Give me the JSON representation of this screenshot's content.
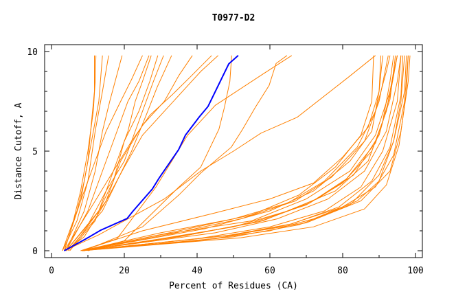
{
  "chart_data": {
    "type": "line",
    "title": "T0977-D2",
    "xlabel": "Percent of Residues (CA)",
    "ylabel": "Distance Cutoff, A",
    "xlim": [
      0,
      100
    ],
    "ylim": [
      0,
      10
    ],
    "xticks": [
      "0",
      "20",
      "40",
      "60",
      "80",
      "100"
    ],
    "xtick_values": [
      0,
      20,
      40,
      60,
      80,
      100
    ],
    "yticks": [
      "0",
      "5",
      "10"
    ],
    "ytick_values": [
      0,
      5,
      10
    ],
    "colors": {
      "highlight": "#0000ff",
      "others": "#ff8000",
      "axis": "#000000"
    },
    "highlight_series": {
      "name": "highlighted model",
      "points": [
        [
          3.5,
          0
        ],
        [
          9.4,
          0.59
        ],
        [
          13.5,
          1.03
        ],
        [
          20.8,
          1.62
        ],
        [
          22.3,
          1.97
        ],
        [
          27.7,
          3.1
        ],
        [
          29.6,
          3.66
        ],
        [
          34.9,
          5.07
        ],
        [
          36.8,
          5.8
        ],
        [
          40.6,
          6.72
        ],
        [
          43,
          7.24
        ],
        [
          48.7,
          9.38
        ],
        [
          51.3,
          9.8
        ]
      ]
    },
    "other_series": [
      [
        [
          3,
          0
        ],
        [
          6,
          1.5
        ],
        [
          8,
          3
        ],
        [
          10,
          5
        ],
        [
          11.5,
          7
        ],
        [
          12,
          8.5
        ],
        [
          12.2,
          9.8
        ]
      ],
      [
        [
          3.5,
          0
        ],
        [
          7,
          2
        ],
        [
          9,
          3.5
        ],
        [
          11,
          5.5
        ],
        [
          13,
          7.5
        ],
        [
          14,
          9.8
        ]
      ],
      [
        [
          3,
          0
        ],
        [
          7,
          1.5
        ],
        [
          10,
          3.5
        ],
        [
          12,
          6
        ],
        [
          14,
          8
        ],
        [
          15.7,
          9.8
        ]
      ],
      [
        [
          4,
          0
        ],
        [
          9,
          2
        ],
        [
          12,
          4
        ],
        [
          14,
          6
        ],
        [
          16,
          7.5
        ],
        [
          19.4,
          9.8
        ]
      ],
      [
        [
          4,
          0
        ],
        [
          10,
          2
        ],
        [
          14,
          4
        ],
        [
          17,
          5.5
        ],
        [
          21,
          7.5
        ],
        [
          24,
          8.5
        ],
        [
          26.8,
          9.8
        ]
      ],
      [
        [
          3.5,
          0
        ],
        [
          12,
          2.5
        ],
        [
          17,
          4
        ],
        [
          21,
          6
        ],
        [
          23,
          7.5
        ],
        [
          25,
          8.5
        ],
        [
          27.4,
          9.8
        ]
      ],
      [
        [
          4,
          0
        ],
        [
          13,
          2
        ],
        [
          17,
          3.5
        ],
        [
          20,
          5.5
        ],
        [
          24,
          7
        ],
        [
          27,
          8.5
        ],
        [
          29.2,
          9.8
        ]
      ],
      [
        [
          4,
          0
        ],
        [
          10,
          1.3
        ],
        [
          15,
          3
        ],
        [
          20,
          4.5
        ],
        [
          24,
          6.5
        ],
        [
          28,
          8.5
        ],
        [
          30.8,
          9.8
        ]
      ],
      [
        [
          4.5,
          0
        ],
        [
          14,
          2
        ],
        [
          18,
          3.5
        ],
        [
          22,
          5
        ],
        [
          26,
          6.8
        ],
        [
          29,
          8.2
        ],
        [
          33,
          9.8
        ]
      ],
      [
        [
          4,
          0
        ],
        [
          9,
          0.7
        ],
        [
          15,
          2.5
        ],
        [
          19,
          4.5
        ],
        [
          25,
          6.3
        ],
        [
          31,
          7.5
        ],
        [
          35,
          8.8
        ],
        [
          38.7,
          9.8
        ]
      ],
      [
        [
          5,
          0
        ],
        [
          12,
          1.5
        ],
        [
          17,
          4
        ],
        [
          22,
          5.5
        ],
        [
          27,
          6.8
        ],
        [
          33,
          7.8
        ],
        [
          38,
          8.7
        ],
        [
          44,
          9.8
        ]
      ],
      [
        [
          5,
          0
        ],
        [
          15,
          2.5
        ],
        [
          20,
          4.2
        ],
        [
          25,
          5.8
        ],
        [
          32,
          7.2
        ],
        [
          37,
          8.2
        ],
        [
          41,
          9
        ],
        [
          45.8,
          9.8
        ]
      ],
      [
        [
          3,
          0
        ],
        [
          5,
          1
        ],
        [
          8,
          2.5
        ],
        [
          10,
          4.5
        ],
        [
          11,
          6.5
        ],
        [
          11.8,
          8
        ],
        [
          11.8,
          9.8
        ]
      ],
      [
        [
          3.5,
          0
        ],
        [
          8,
          2.5
        ],
        [
          12,
          4.5
        ],
        [
          15,
          6
        ],
        [
          19,
          7.5
        ],
        [
          22,
          8.6
        ],
        [
          25,
          9.8
        ]
      ],
      [
        [
          3.5,
          0
        ],
        [
          13,
          0.8
        ],
        [
          21,
          1.6
        ],
        [
          31,
          2.6
        ],
        [
          41,
          4
        ],
        [
          50,
          5
        ],
        [
          57.5,
          5.9
        ],
        [
          67.5,
          6.7
        ],
        [
          81.5,
          8.7
        ],
        [
          89,
          9.8
        ]
      ],
      [
        [
          8,
          0
        ],
        [
          18,
          0.6
        ],
        [
          28.7,
          3.2
        ],
        [
          37.4,
          5.8
        ],
        [
          45,
          7.3
        ],
        [
          57.5,
          8.8
        ],
        [
          66,
          9.8
        ]
      ],
      [
        [
          10,
          0
        ],
        [
          20,
          0.5
        ],
        [
          35,
          3.2
        ],
        [
          41,
          4.2
        ],
        [
          46,
          6.1
        ],
        [
          47.5,
          7.2
        ],
        [
          49,
          8.5
        ],
        [
          49.5,
          9.8
        ]
      ],
      [
        [
          9,
          0
        ],
        [
          25,
          1.2
        ],
        [
          35,
          2.8
        ],
        [
          41,
          3.9
        ],
        [
          49.4,
          5.2
        ],
        [
          52.5,
          6.1
        ],
        [
          56,
          7.2
        ],
        [
          59.8,
          8.3
        ],
        [
          61.7,
          9.4
        ],
        [
          64.7,
          9.8
        ]
      ],
      [
        [
          8.3,
          0
        ],
        [
          30,
          0.6
        ],
        [
          50,
          1.2
        ],
        [
          65,
          2
        ],
        [
          78,
          3
        ],
        [
          87,
          4.5
        ],
        [
          91,
          6.5
        ],
        [
          93,
          8.5
        ],
        [
          94,
          9.8
        ]
      ],
      [
        [
          8.3,
          0
        ],
        [
          35,
          0.7
        ],
        [
          55,
          1.4
        ],
        [
          70,
          2.3
        ],
        [
          80,
          3.4
        ],
        [
          88,
          5
        ],
        [
          92,
          7
        ],
        [
          94,
          9
        ],
        [
          95,
          9.8
        ]
      ],
      [
        [
          8.3,
          0
        ],
        [
          30,
          0.9
        ],
        [
          50,
          1.6
        ],
        [
          65,
          2.4
        ],
        [
          75,
          3.5
        ],
        [
          84,
          5.2
        ],
        [
          89,
          7
        ],
        [
          92,
          9
        ],
        [
          93,
          9.8
        ]
      ],
      [
        [
          8.3,
          0
        ],
        [
          40,
          0.6
        ],
        [
          60,
          1.2
        ],
        [
          75,
          2
        ],
        [
          85,
          3.2
        ],
        [
          91,
          5
        ],
        [
          95,
          7.5
        ],
        [
          96,
          9.8
        ]
      ],
      [
        [
          8.3,
          0
        ],
        [
          40,
          0.5
        ],
        [
          60,
          1
        ],
        [
          72,
          1.6
        ],
        [
          84,
          2.5
        ],
        [
          90,
          3.5
        ],
        [
          94,
          5.5
        ],
        [
          97,
          8
        ],
        [
          97.5,
          9.8
        ]
      ],
      [
        [
          8.3,
          0
        ],
        [
          45,
          0.6
        ],
        [
          65,
          1.3
        ],
        [
          80,
          2.2
        ],
        [
          89,
          3.2
        ],
        [
          94,
          4.8
        ],
        [
          97,
          7.5
        ],
        [
          98,
          9.8
        ]
      ],
      [
        [
          8.3,
          0
        ],
        [
          25,
          1
        ],
        [
          45,
          1.9
        ],
        [
          60,
          2.6
        ],
        [
          72,
          3.4
        ],
        [
          80,
          4.7
        ],
        [
          87,
          6.2
        ],
        [
          90,
          8
        ],
        [
          91,
          9.8
        ]
      ],
      [
        [
          8.3,
          0
        ],
        [
          30,
          0.8
        ],
        [
          55,
          1.5
        ],
        [
          70,
          2.6
        ],
        [
          82,
          4
        ],
        [
          89,
          5.8
        ],
        [
          93,
          8
        ],
        [
          95,
          9.8
        ]
      ],
      [
        [
          8.3,
          0
        ],
        [
          50,
          0.8
        ],
        [
          70,
          1.4
        ],
        [
          85,
          2.5
        ],
        [
          93,
          4
        ],
        [
          96,
          6
        ],
        [
          98,
          8.5
        ],
        [
          98.5,
          9.8
        ]
      ],
      [
        [
          8.3,
          0
        ],
        [
          35,
          1
        ],
        [
          55,
          1.8
        ],
        [
          68,
          2.8
        ],
        [
          78,
          4.2
        ],
        [
          85,
          5.8
        ],
        [
          88,
          7.5
        ],
        [
          88.5,
          9.8
        ]
      ],
      [
        [
          8.3,
          0
        ],
        [
          45,
          0.9
        ],
        [
          62,
          1.6
        ],
        [
          76,
          2.6
        ],
        [
          86,
          4
        ],
        [
          92,
          6
        ],
        [
          95,
          8.5
        ],
        [
          96,
          9.8
        ]
      ],
      [
        [
          8.3,
          0
        ],
        [
          38,
          0.8
        ],
        [
          58,
          1.5
        ],
        [
          73,
          2.6
        ],
        [
          83,
          3.8
        ],
        [
          90,
          5.8
        ],
        [
          93,
          7.8
        ],
        [
          95,
          9.8
        ]
      ],
      [
        [
          8.3,
          0
        ],
        [
          50,
          0.7
        ],
        [
          68,
          1.3
        ],
        [
          82,
          2.3
        ],
        [
          90,
          3.8
        ],
        [
          94,
          5.5
        ],
        [
          96,
          7.5
        ],
        [
          97,
          9.8
        ]
      ],
      [
        [
          8.3,
          0
        ],
        [
          42,
          1.1
        ],
        [
          60,
          2
        ],
        [
          72,
          3
        ],
        [
          82,
          4.5
        ],
        [
          88,
          6
        ],
        [
          90,
          8
        ],
        [
          90.5,
          9.8
        ]
      ],
      [
        [
          8.3,
          0
        ],
        [
          36,
          0.75
        ],
        [
          57,
          1.45
        ],
        [
          71,
          2.4
        ],
        [
          81,
          3.6
        ],
        [
          89,
          5.4
        ],
        [
          93,
          7.6
        ],
        [
          94.5,
          9.8
        ]
      ],
      [
        [
          8.3,
          0
        ],
        [
          48,
          0.75
        ],
        [
          66,
          1.35
        ],
        [
          79,
          2.2
        ],
        [
          88,
          3.5
        ],
        [
          93,
          5.2
        ],
        [
          96,
          7.8
        ],
        [
          96.5,
          9.8
        ]
      ],
      [
        [
          8.3,
          0
        ],
        [
          33,
          0.85
        ],
        [
          52,
          1.6
        ],
        [
          67,
          2.5
        ],
        [
          77,
          3.7
        ],
        [
          86,
          5.5
        ],
        [
          90,
          7.5
        ],
        [
          92.5,
          9.8
        ]
      ],
      [
        [
          8.3,
          0
        ],
        [
          52,
          0.65
        ],
        [
          72,
          1.2
        ],
        [
          86,
          2.1
        ],
        [
          92,
          3.3
        ],
        [
          95.5,
          5.3
        ],
        [
          97.5,
          8
        ],
        [
          98,
          9.8
        ]
      ]
    ]
  }
}
